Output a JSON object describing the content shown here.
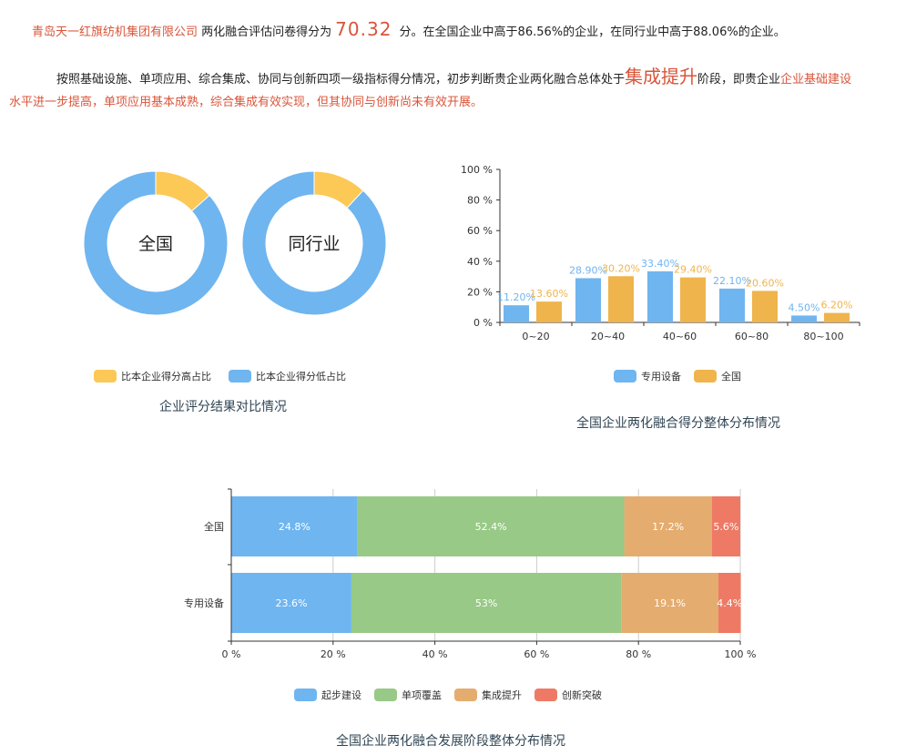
{
  "summary": {
    "company": "青岛天一红旗纺机集团有限公司",
    "text1": " 两化融合评估问卷得分为",
    "score": "70.32",
    "text2": " 分。在全国企业中高于86.56%的企业，在同行业中高于88.06%的企业。",
    "text3": "按照基础设施、单项应用、综合集成、协同与创新四项一级指标得分情况，初步判断贵企业两化融合总体处于",
    "stage": "集成提升",
    "text4": "阶段，即贵企业",
    "conclusion_line1": "企业基础建设",
    "conclusion_line2": "水平进一步提高，单项应用基本成熟，综合集成有效实现，但其协同与创新尚未有效开展。"
  },
  "colors": {
    "highlight": "#d9553a",
    "blue": "#6fb5f0",
    "yellow": "#fcc856",
    "orange": "#f0b44c",
    "green": "#98c986",
    "tan": "#e5ac6f",
    "red": "#ee7a65"
  },
  "chart_data": [
    {
      "type": "pie",
      "title": "企业评分结果对比情况",
      "legend": [
        "比本企业得分高占比",
        "比本企业得分低占比"
      ],
      "legend_position": "bottom",
      "donuts": [
        {
          "label": "全国",
          "values": [
            13.44,
            86.56
          ]
        },
        {
          "label": "同行业",
          "values": [
            11.94,
            88.06
          ]
        }
      ]
    },
    {
      "type": "bar",
      "title": "全国企业两化融合得分整体分布情况",
      "categories": [
        "0~20",
        "20~40",
        "40~60",
        "60~80",
        "80~100"
      ],
      "yticks": [
        "0 %",
        "20 %",
        "40 %",
        "60 %",
        "80 %",
        "100 %"
      ],
      "ylim": [
        0,
        100
      ],
      "legend_position": "bottom",
      "series": [
        {
          "name": "专用设备",
          "values": [
            11.2,
            28.9,
            33.4,
            22.1,
            4.5
          ],
          "labels": [
            "11.20%",
            "28.90%",
            "33.40%",
            "22.10%",
            "4.50%"
          ]
        },
        {
          "name": "全国",
          "values": [
            13.6,
            30.2,
            29.4,
            20.6,
            6.2
          ],
          "labels": [
            "13.60%",
            "30.20%",
            "29.40%",
            "20.60%",
            "6.20%"
          ]
        }
      ]
    },
    {
      "type": "bar",
      "orientation": "horizontal",
      "stacked": true,
      "title": "全国企业两化融合发展阶段整体分布情况",
      "categories": [
        "全国",
        "专用设备"
      ],
      "xticks": [
        "0 %",
        "20 %",
        "40 %",
        "60 %",
        "80 %",
        "100 %"
      ],
      "xlim": [
        0,
        100
      ],
      "grid": true,
      "legend_position": "bottom",
      "series": [
        {
          "name": "起步建设",
          "values": [
            24.8,
            23.6
          ],
          "labels": [
            "24.8%",
            "23.6%"
          ]
        },
        {
          "name": "单项覆盖",
          "values": [
            52.4,
            53
          ],
          "labels": [
            "52.4%",
            "53%"
          ]
        },
        {
          "name": "集成提升",
          "values": [
            17.2,
            19.1
          ],
          "labels": [
            "17.2%",
            "19.1%"
          ]
        },
        {
          "name": "创新突破",
          "values": [
            5.6,
            4.4
          ],
          "labels": [
            "5.6%",
            "4.4%"
          ]
        }
      ]
    }
  ]
}
